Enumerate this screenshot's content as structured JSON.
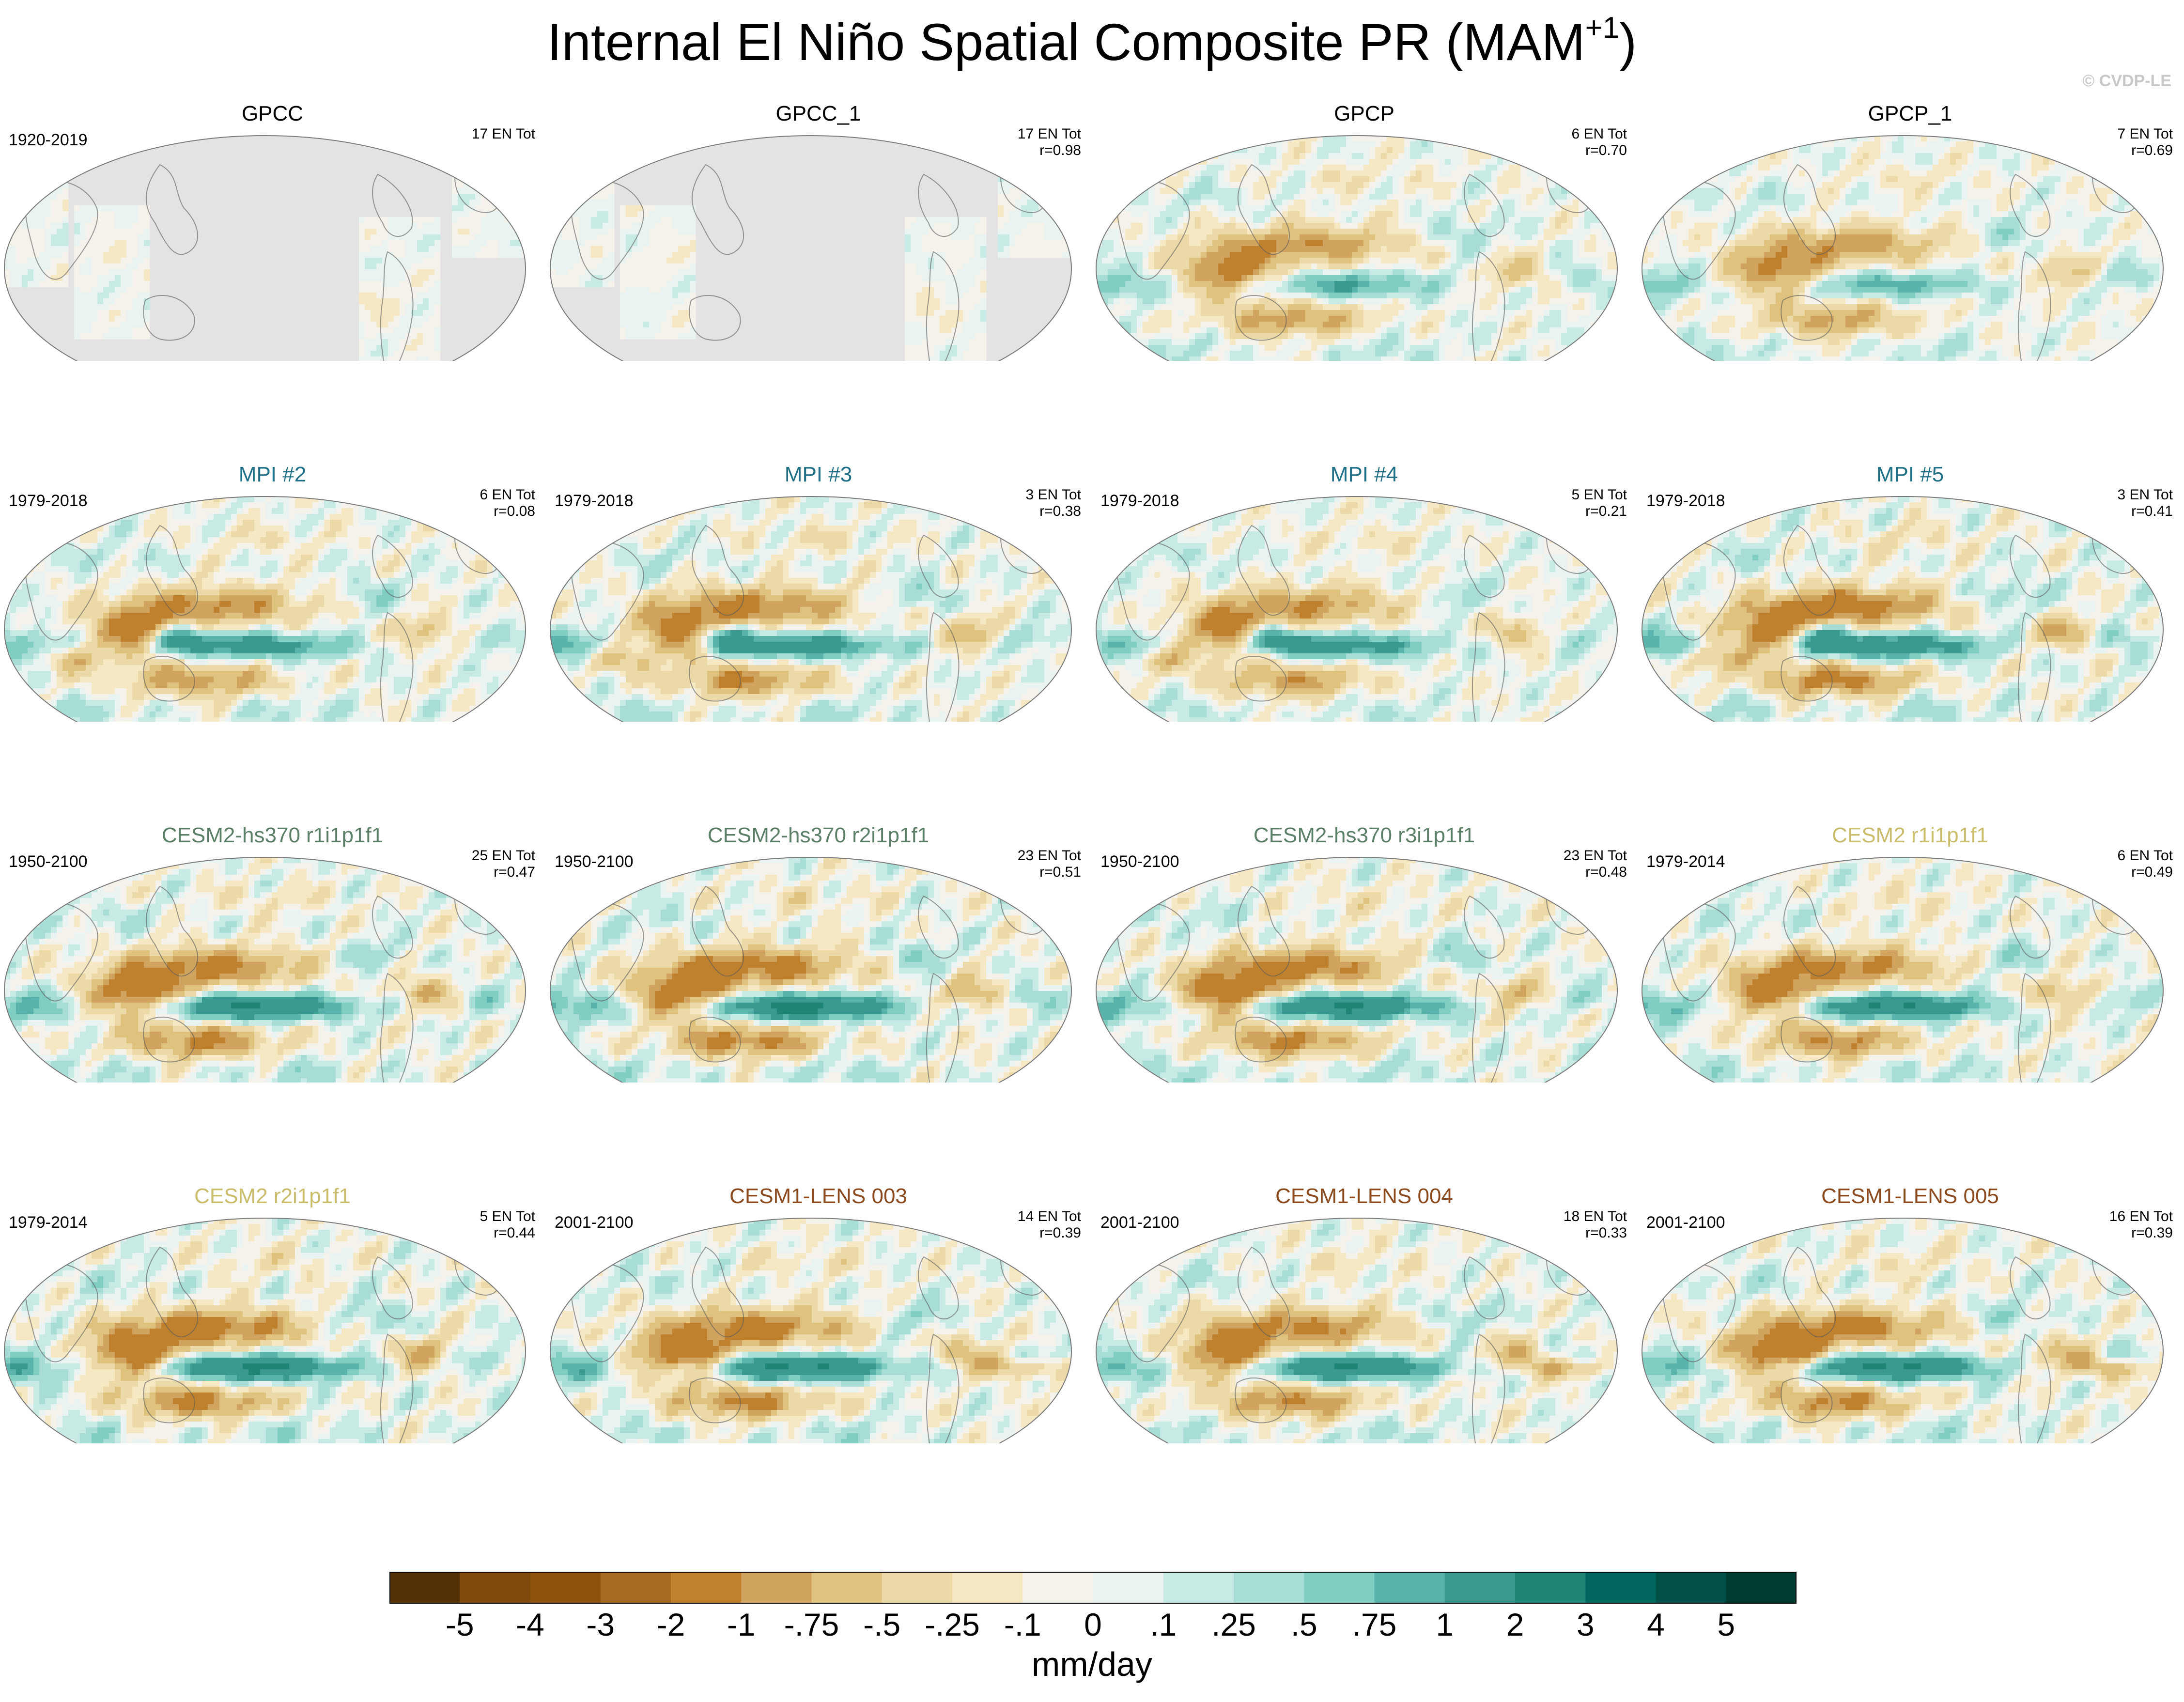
{
  "title": {
    "main": "Internal El Niño Spatial Composite PR (MAM",
    "sup": "+1",
    "close": ")"
  },
  "credit": "© CVDP-LE",
  "colors": {
    "background": "#ffffff",
    "land_mask": "#e3e3e3",
    "coast": "#5a5a5a",
    "obs_title": "#000000",
    "mpi_title": "#1f6f86",
    "cesm2_hs370_title": "#5c7f68",
    "cesm2_title": "#c9bc6a",
    "lens_title": "#8a4a1e"
  },
  "panels": [
    {
      "name": "GPCC",
      "period": "1920-2019",
      "count": "17 EN Tot",
      "corr": "",
      "title_color": "#000000",
      "style": "land",
      "amp": 0.35
    },
    {
      "name": "GPCC_1",
      "period": "",
      "count": "17 EN Tot",
      "corr": "r=0.98",
      "title_color": "#000000",
      "style": "land",
      "amp": 0.35
    },
    {
      "name": "GPCP",
      "period": "",
      "count": "6 EN Tot",
      "corr": "r=0.70",
      "title_color": "#000000",
      "style": "obs",
      "amp": 0.75
    },
    {
      "name": "GPCP_1",
      "period": "",
      "count": "7 EN Tot",
      "corr": "r=0.69",
      "title_color": "#000000",
      "style": "obs",
      "amp": 0.7
    },
    {
      "name": "MPI #2",
      "period": "1979-2018",
      "count": "6 EN Tot",
      "corr": "r=0.08",
      "title_color": "#1f6f86",
      "style": "mpi",
      "amp": 0.8
    },
    {
      "name": "MPI #3",
      "period": "1979-2018",
      "count": "3 EN Tot",
      "corr": "r=0.38",
      "title_color": "#1f6f86",
      "style": "mpi",
      "amp": 0.85
    },
    {
      "name": "MPI #4",
      "period": "1979-2018",
      "count": "5 EN Tot",
      "corr": "r=0.21",
      "title_color": "#1f6f86",
      "style": "mpi",
      "amp": 0.75
    },
    {
      "name": "MPI #5",
      "period": "1979-2018",
      "count": "3 EN Tot",
      "corr": "r=0.41",
      "title_color": "#1f6f86",
      "style": "mpi",
      "amp": 0.95
    },
    {
      "name": "CESM2-hs370 r1i1p1f1",
      "period": "1950-2100",
      "count": "25 EN Tot",
      "corr": "r=0.47",
      "title_color": "#5c7f68",
      "style": "cesm",
      "amp": 0.9
    },
    {
      "name": "CESM2-hs370 r2i1p1f1",
      "period": "1950-2100",
      "count": "23 EN Tot",
      "corr": "r=0.51",
      "title_color": "#5c7f68",
      "style": "cesm",
      "amp": 0.95
    },
    {
      "name": "CESM2-hs370 r3i1p1f1",
      "period": "1950-2100",
      "count": "23 EN Tot",
      "corr": "r=0.48",
      "title_color": "#5c7f68",
      "style": "cesm",
      "amp": 0.9
    },
    {
      "name": "CESM2 r1i1p1f1",
      "period": "1979-2014",
      "count": "6 EN Tot",
      "corr": "r=0.49",
      "title_color": "#c9bc6a",
      "style": "cesm",
      "amp": 0.85
    },
    {
      "name": "CESM2 r2i1p1f1",
      "period": "1979-2014",
      "count": "5 EN Tot",
      "corr": "r=0.44",
      "title_color": "#c9bc6a",
      "style": "cesm",
      "amp": 0.95
    },
    {
      "name": "CESM1-LENS 003",
      "period": "2001-2100",
      "count": "14 EN Tot",
      "corr": "r=0.39",
      "title_color": "#8a4a1e",
      "style": "lens",
      "amp": 0.9
    },
    {
      "name": "CESM1-LENS 004",
      "period": "2001-2100",
      "count": "18 EN Tot",
      "corr": "r=0.33",
      "title_color": "#8a4a1e",
      "style": "lens",
      "amp": 0.85
    },
    {
      "name": "CESM1-LENS 005",
      "period": "2001-2100",
      "count": "16 EN Tot",
      "corr": "r=0.39",
      "title_color": "#8a4a1e",
      "style": "lens",
      "amp": 0.9
    }
  ],
  "chart_data": {
    "type": "heatmap",
    "title": "Internal El Niño Spatial Composite PR (MAM+1)",
    "projection": "robinson-like global",
    "colorbar": {
      "ticks": [
        "-5",
        "-4",
        "-3",
        "-2",
        "-1",
        "-.75",
        "-.5",
        "-.25",
        "-.1",
        "0",
        ".1",
        ".25",
        ".5",
        ".75",
        "1",
        "2",
        "3",
        "4",
        "5"
      ],
      "colors": [
        "#543005",
        "#7f4a0b",
        "#8c510a",
        "#a86b22",
        "#bf812d",
        "#d0a45e",
        "#dfc27d",
        "#ecd9a8",
        "#f6e8c3",
        "#f5f2ec",
        "#e9f3f1",
        "#c7eae5",
        "#a7ddd4",
        "#80cdc1",
        "#5ab4ac",
        "#3a9a8f",
        "#1f8577",
        "#01665e",
        "#014f46",
        "#003c30"
      ],
      "unit": "mm/day"
    }
  }
}
